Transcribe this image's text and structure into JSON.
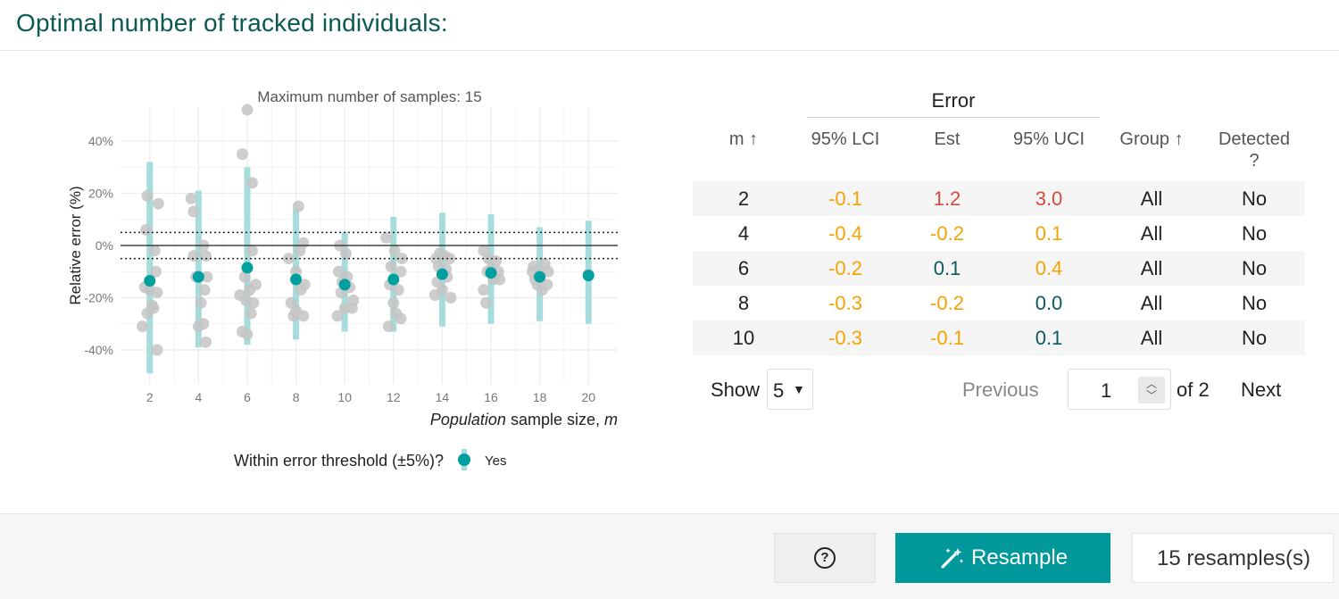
{
  "card": {
    "title": "Optimal number of tracked individuals:"
  },
  "chart_data": {
    "type": "scatter",
    "title": "Maximum number of samples: 15",
    "xlabel_italic": "Population",
    "xlabel_rest": " sample size, ",
    "xlabel_var": "m",
    "ylabel": "Relative error (%)",
    "x_ticks": [
      2,
      4,
      6,
      8,
      10,
      12,
      14,
      16,
      18,
      20
    ],
    "y_ticks": [
      {
        "value": 40,
        "label": "40%"
      },
      {
        "value": 20,
        "label": "20%"
      },
      {
        "value": 0,
        "label": "0%"
      },
      {
        "value": -20,
        "label": "-20%"
      },
      {
        "value": -40,
        "label": "-40%"
      }
    ],
    "xlim": [
      0.8,
      21.2
    ],
    "ylim": [
      -53,
      53
    ],
    "threshold": 5,
    "legend_title": "Within error threshold (±5%)?",
    "legend_label": "Yes",
    "colors": {
      "point": "#00a0a0",
      "ci": "#a6dcdc",
      "raw": "#c4c4c4",
      "grid": "#ececec"
    },
    "summary": [
      {
        "m": 2,
        "est": -13.5,
        "lci": -49,
        "uci": 32
      },
      {
        "m": 4,
        "est": -12,
        "lci": -39,
        "uci": 21
      },
      {
        "m": 6,
        "est": -8.5,
        "lci": -38,
        "uci": 30
      },
      {
        "m": 8,
        "est": -13,
        "lci": -36,
        "uci": 14
      },
      {
        "m": 10,
        "est": -15,
        "lci": -33,
        "uci": 5
      },
      {
        "m": 12,
        "est": -13,
        "lci": -33,
        "uci": 11
      },
      {
        "m": 14,
        "est": -11,
        "lci": -31,
        "uci": 12.5
      },
      {
        "m": 16,
        "est": -10.5,
        "lci": -30,
        "uci": 12
      },
      {
        "m": 18,
        "est": -12,
        "lci": -29,
        "uci": 7
      },
      {
        "m": 20,
        "est": -11.5,
        "lci": -30,
        "uci": 9.5
      }
    ],
    "raw": [
      {
        "x": 1.7,
        "y": -31
      },
      {
        "x": 1.8,
        "y": -16
      },
      {
        "x": 1.85,
        "y": 6
      },
      {
        "x": 1.9,
        "y": 19
      },
      {
        "x": 1.9,
        "y": -26
      },
      {
        "x": 2.0,
        "y": -17
      },
      {
        "x": 2.1,
        "y": -23
      },
      {
        "x": 2.15,
        "y": -24
      },
      {
        "x": 2.2,
        "y": -2
      },
      {
        "x": 2.25,
        "y": -10
      },
      {
        "x": 2.3,
        "y": -18
      },
      {
        "x": 2.3,
        "y": -40
      },
      {
        "x": 2.35,
        "y": 16
      },
      {
        "x": 3.7,
        "y": 18
      },
      {
        "x": 3.8,
        "y": 13
      },
      {
        "x": 3.8,
        "y": -4
      },
      {
        "x": 3.9,
        "y": -12
      },
      {
        "x": 4.0,
        "y": -31
      },
      {
        "x": 4.1,
        "y": -22
      },
      {
        "x": 4.2,
        "y": 0
      },
      {
        "x": 4.2,
        "y": -30
      },
      {
        "x": 4.3,
        "y": -4
      },
      {
        "x": 4.3,
        "y": -37
      },
      {
        "x": 4.35,
        "y": -12
      },
      {
        "x": 4.25,
        "y": -17
      },
      {
        "x": 5.7,
        "y": -19
      },
      {
        "x": 5.8,
        "y": 35
      },
      {
        "x": 5.8,
        "y": -33
      },
      {
        "x": 5.9,
        "y": -12
      },
      {
        "x": 5.95,
        "y": -21
      },
      {
        "x": 6.0,
        "y": 52
      },
      {
        "x": 6.0,
        "y": -34
      },
      {
        "x": 6.1,
        "y": -17
      },
      {
        "x": 6.15,
        "y": -26
      },
      {
        "x": 6.2,
        "y": 24
      },
      {
        "x": 6.2,
        "y": -2
      },
      {
        "x": 6.25,
        "y": -22
      },
      {
        "x": 6.35,
        "y": -15
      },
      {
        "x": 7.7,
        "y": -5
      },
      {
        "x": 7.8,
        "y": -22
      },
      {
        "x": 7.9,
        "y": -27
      },
      {
        "x": 8.0,
        "y": -10
      },
      {
        "x": 8.0,
        "y": -25
      },
      {
        "x": 8.1,
        "y": 15
      },
      {
        "x": 8.15,
        "y": -2
      },
      {
        "x": 8.2,
        "y": -17
      },
      {
        "x": 8.3,
        "y": -27
      },
      {
        "x": 8.3,
        "y": 1
      },
      {
        "x": 8.35,
        "y": -15
      },
      {
        "x": 9.7,
        "y": -27
      },
      {
        "x": 9.75,
        "y": -10
      },
      {
        "x": 9.8,
        "y": 0
      },
      {
        "x": 9.85,
        "y": -18
      },
      {
        "x": 9.9,
        "y": -14
      },
      {
        "x": 10.0,
        "y": -24
      },
      {
        "x": 10.05,
        "y": -3
      },
      {
        "x": 10.1,
        "y": -12
      },
      {
        "x": 10.2,
        "y": -16
      },
      {
        "x": 10.3,
        "y": -24
      },
      {
        "x": 10.35,
        "y": -21
      },
      {
        "x": 11.7,
        "y": 3
      },
      {
        "x": 11.8,
        "y": -31
      },
      {
        "x": 11.85,
        "y": -15
      },
      {
        "x": 11.9,
        "y": -8
      },
      {
        "x": 12.0,
        "y": -22
      },
      {
        "x": 12.05,
        "y": -2
      },
      {
        "x": 12.1,
        "y": -26
      },
      {
        "x": 12.2,
        "y": -17
      },
      {
        "x": 12.3,
        "y": -28
      },
      {
        "x": 12.3,
        "y": -10
      },
      {
        "x": 12.35,
        "y": -5
      },
      {
        "x": 13.7,
        "y": -19
      },
      {
        "x": 13.75,
        "y": -5
      },
      {
        "x": 13.8,
        "y": -14
      },
      {
        "x": 13.85,
        "y": -8
      },
      {
        "x": 13.9,
        "y": -3
      },
      {
        "x": 14.0,
        "y": -17
      },
      {
        "x": 14.1,
        "y": -4
      },
      {
        "x": 14.15,
        "y": -9
      },
      {
        "x": 14.2,
        "y": -12
      },
      {
        "x": 14.3,
        "y": -5
      },
      {
        "x": 14.35,
        "y": -20
      },
      {
        "x": 15.7,
        "y": -17
      },
      {
        "x": 15.7,
        "y": -2
      },
      {
        "x": 15.8,
        "y": -22
      },
      {
        "x": 15.85,
        "y": -10
      },
      {
        "x": 15.9,
        "y": -5
      },
      {
        "x": 16.0,
        "y": -9
      },
      {
        "x": 16.1,
        "y": -13
      },
      {
        "x": 16.2,
        "y": -6
      },
      {
        "x": 16.3,
        "y": -10
      },
      {
        "x": 16.35,
        "y": -13
      },
      {
        "x": 17.7,
        "y": -10
      },
      {
        "x": 17.75,
        "y": -8
      },
      {
        "x": 17.8,
        "y": -13
      },
      {
        "x": 17.9,
        "y": -15
      },
      {
        "x": 18.0,
        "y": -11
      },
      {
        "x": 18.1,
        "y": -17
      },
      {
        "x": 18.2,
        "y": -7
      },
      {
        "x": 18.3,
        "y": -15
      },
      {
        "x": 18.35,
        "y": -10
      },
      {
        "x": 20.0,
        "y": -11
      }
    ]
  },
  "table": {
    "group_header": "Error",
    "columns": {
      "m": "m ↑",
      "lci": "95% LCI",
      "est": "Est",
      "uci": "95% UCI",
      "group": "Group ↑",
      "detected_l1": "Detected",
      "detected_l2": "?"
    },
    "colors": {
      "orange": "#f5a300",
      "red": "#d64b3c",
      "teal": "#0d5a5e"
    },
    "rows": [
      {
        "m": "2",
        "lci": "-0.1",
        "lci_color": "orange",
        "est": "1.2",
        "est_color": "red",
        "uci": "3.0",
        "uci_color": "red",
        "group": "All",
        "detected": "No"
      },
      {
        "m": "4",
        "lci": "-0.4",
        "lci_color": "orange",
        "est": "-0.2",
        "est_color": "orange",
        "uci": "0.1",
        "uci_color": "orange",
        "group": "All",
        "detected": "No"
      },
      {
        "m": "6",
        "lci": "-0.2",
        "lci_color": "orange",
        "est": "0.1",
        "est_color": "teal",
        "uci": "0.4",
        "uci_color": "orange",
        "group": "All",
        "detected": "No"
      },
      {
        "m": "8",
        "lci": "-0.3",
        "lci_color": "orange",
        "est": "-0.2",
        "est_color": "orange",
        "uci": "0.0",
        "uci_color": "teal",
        "group": "All",
        "detected": "No"
      },
      {
        "m": "10",
        "lci": "-0.3",
        "lci_color": "orange",
        "est": "-0.1",
        "est_color": "orange",
        "uci": "0.1",
        "uci_color": "teal",
        "group": "All",
        "detected": "No"
      }
    ]
  },
  "pager": {
    "show_label": "Show",
    "page_size": "5",
    "previous": "Previous",
    "current_page": "1",
    "of_label": "of 2",
    "next": "Next"
  },
  "footer": {
    "help_icon": "question-circle-icon",
    "resample_label": "Resample",
    "resample_icon": "magic-wand-icon",
    "resample_count": "15 resamples(s)",
    "accent": "#00989a"
  }
}
